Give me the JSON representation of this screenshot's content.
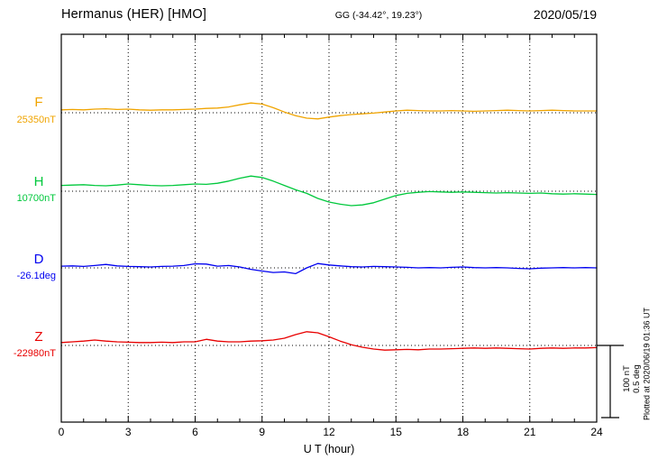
{
  "chart_data": {
    "type": "line",
    "title": "Hermanus (HER)  [HMO]",
    "coords_label": "GG (-34.42°,  19.23°)",
    "date": "2020/05/19",
    "xlabel": "U T (hour)",
    "xlim": [
      0,
      24
    ],
    "x_ticks": [
      0,
      3,
      6,
      9,
      12,
      15,
      18,
      21,
      24
    ],
    "grid": "dotted vertical gridlines every 3 hours; dotted horizontal baseline per trace",
    "legend_position": "left trace labels",
    "plotted_at": "Plotted at 2020/06/19 01:36 UT",
    "scale_bar": {
      "nT": 100,
      "deg": 0.5,
      "nT_label": "100 nT",
      "deg_label": "0.5 deg"
    },
    "x": [
      0,
      0.5,
      1,
      1.5,
      2,
      2.5,
      3,
      3.5,
      4,
      4.5,
      5,
      5.5,
      6,
      6.5,
      7,
      7.5,
      8,
      8.5,
      9,
      9.5,
      10,
      10.5,
      11,
      11.5,
      12,
      12.5,
      13,
      13.5,
      14,
      14.5,
      15,
      15.5,
      16,
      16.5,
      17,
      17.5,
      18,
      18.5,
      19,
      19.5,
      20,
      20.5,
      21,
      21.5,
      22,
      22.5,
      23,
      23.5,
      24
    ],
    "series": [
      {
        "name": "F",
        "baseline_label": "25350nT",
        "baseline_value": 25350,
        "unit": "nT",
        "color": "#f0a400",
        "y": [
          4,
          4.5,
          4,
          5,
          5.5,
          4.5,
          5,
          4,
          3.5,
          4,
          4,
          4.5,
          5,
          6,
          6.5,
          8,
          11,
          13.5,
          12,
          7,
          1,
          -4,
          -7.5,
          -8.5,
          -6,
          -4,
          -2.5,
          -1.5,
          -0.5,
          1,
          2.5,
          3.5,
          3,
          2.5,
          2.5,
          3,
          2.5,
          2,
          2.5,
          3,
          3.5,
          3,
          2.5,
          3,
          3.5,
          3,
          2.5,
          2.5,
          2.5
        ]
      },
      {
        "name": "H",
        "baseline_label": "10700nT",
        "baseline_value": 10700,
        "unit": "nT",
        "color": "#00c83c",
        "y": [
          8,
          8.5,
          9,
          8,
          7.5,
          8.5,
          10,
          9,
          8,
          7.5,
          8,
          9,
          10,
          9.5,
          11,
          14,
          18,
          21,
          19,
          14,
          8,
          2,
          -3,
          -10,
          -15,
          -18,
          -20,
          -19,
          -16,
          -11,
          -6,
          -3,
          -1.5,
          -0.5,
          -1,
          -1.5,
          -1,
          -1.5,
          -2,
          -2.5,
          -2,
          -2.5,
          -3,
          -2.5,
          -3.5,
          -4,
          -3.5,
          -4,
          -4.5
        ]
      },
      {
        "name": "D",
        "baseline_label": "-26.1deg",
        "baseline_value": -26.1,
        "unit": "deg",
        "color": "#0000f0",
        "y": [
          0.012,
          0.014,
          0.01,
          0.016,
          0.024,
          0.014,
          0.01,
          0.008,
          0.006,
          0.01,
          0.012,
          0.016,
          0.028,
          0.026,
          0.012,
          0.016,
          0.006,
          -0.01,
          -0.022,
          -0.032,
          -0.028,
          -0.04,
          0.0,
          0.03,
          0.02,
          0.014,
          0.008,
          0.006,
          0.01,
          0.008,
          0.006,
          0.004,
          0.0,
          0.002,
          0.0,
          0.004,
          0.006,
          0.002,
          0.0,
          0.002,
          0.0,
          -0.004,
          -0.006,
          -0.002,
          0.0,
          0.002,
          0.0,
          0.002,
          0.0
        ]
      },
      {
        "name": "Z",
        "baseline_label": "-22980nT",
        "baseline_value": -22980,
        "unit": "nT",
        "color": "#e80000",
        "y": [
          4,
          5,
          6,
          7.5,
          6,
          5,
          4.5,
          4,
          4,
          4.5,
          4,
          5,
          5,
          8.5,
          6,
          5,
          5,
          6,
          6.5,
          7.5,
          10,
          15,
          19,
          17.5,
          12,
          6,
          1,
          -2.5,
          -5,
          -6.5,
          -6,
          -5.5,
          -6,
          -5,
          -5,
          -4.5,
          -4,
          -3.5,
          -4,
          -3.5,
          -4,
          -4.5,
          -5,
          -4,
          -3.5,
          -4,
          -3.5,
          -3.5,
          -3
        ]
      }
    ]
  }
}
